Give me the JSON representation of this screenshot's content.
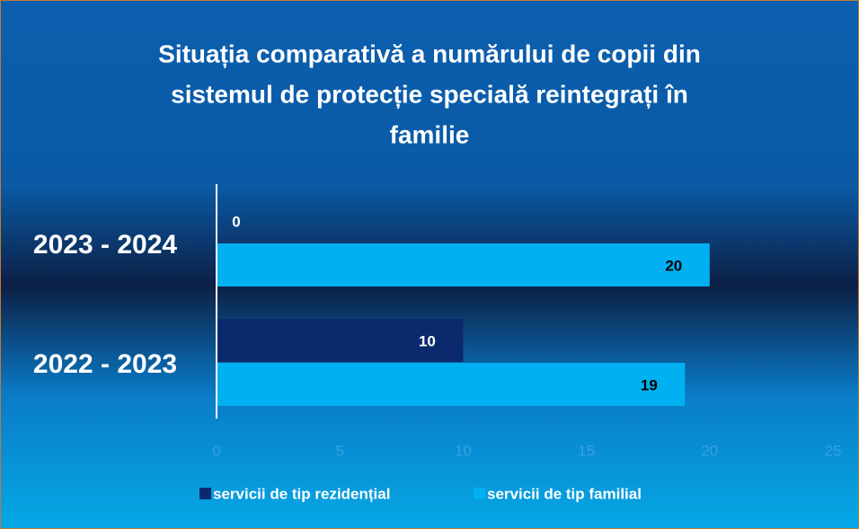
{
  "chart_data": {
    "type": "bar",
    "orientation": "horizontal",
    "title": [
      "Situația comparativă a numărului de copii din",
      "sistemul de protecție specială reintegrați în",
      "familie"
    ],
    "categories": [
      "2022 - 2023",
      "2023 - 2024"
    ],
    "series": [
      {
        "name": "servicii de tip rezidențial",
        "color": "#0b2a6e",
        "label_color": "#ffffff",
        "values": [
          10,
          0
        ]
      },
      {
        "name": "servicii de tip familial",
        "color": "#00b0f0",
        "label_color": "#000000",
        "values": [
          19,
          20
        ]
      }
    ],
    "xlim": [
      0,
      25
    ],
    "xticks": [
      0,
      5,
      10,
      15,
      20,
      25
    ],
    "legend": "bottom"
  }
}
